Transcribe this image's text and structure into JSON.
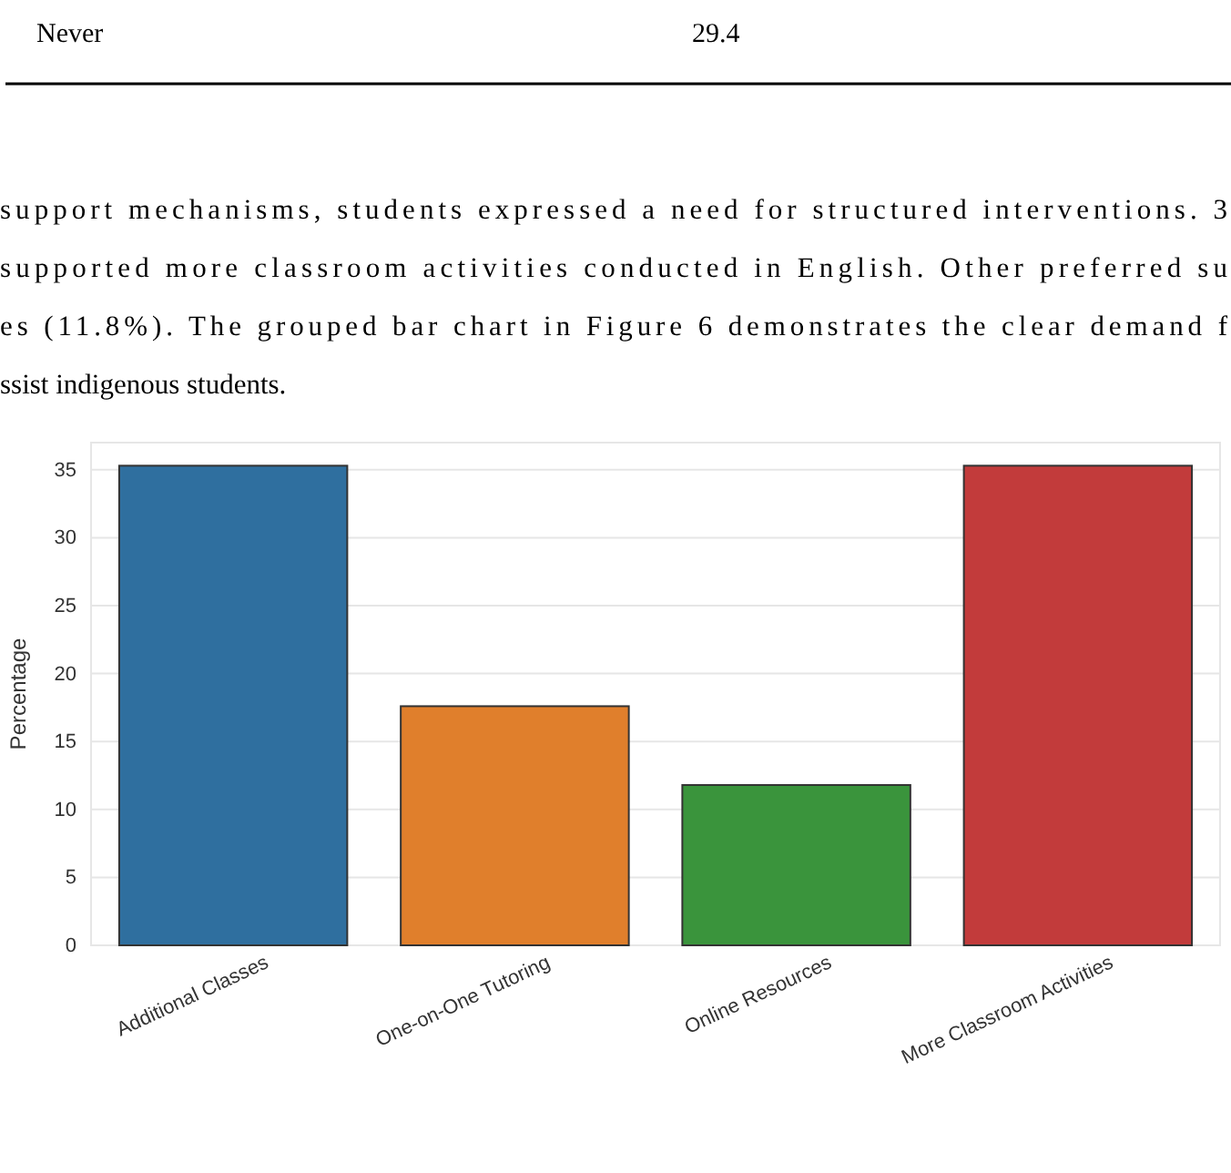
{
  "chart_data": {
    "type": "bar",
    "ylabel": "Percentage",
    "categories": [
      "Additional Classes",
      "One-on-One Tutoring",
      "Online Resources",
      "More Classroom Activities"
    ],
    "values": [
      35.3,
      17.6,
      11.8,
      35.3
    ],
    "colors": [
      "#2f6f9f",
      "#e07f2c",
      "#3a943c",
      "#c23b3b"
    ],
    "ylim": [
      0,
      37
    ],
    "yticks": [
      0,
      5,
      10,
      15,
      20,
      25,
      30,
      35
    ],
    "grid": "y",
    "annotations": [
      "Never",
      "29.4",
      "support mechanisms, students expressed a need for structured interventions. 3",
      "supported more classroom activities conducted in English. Other preferred su",
      "es (11.8%). The grouped bar chart in Figure 6 demonstrates the clear demand f",
      "ssist indigenous students."
    ]
  }
}
